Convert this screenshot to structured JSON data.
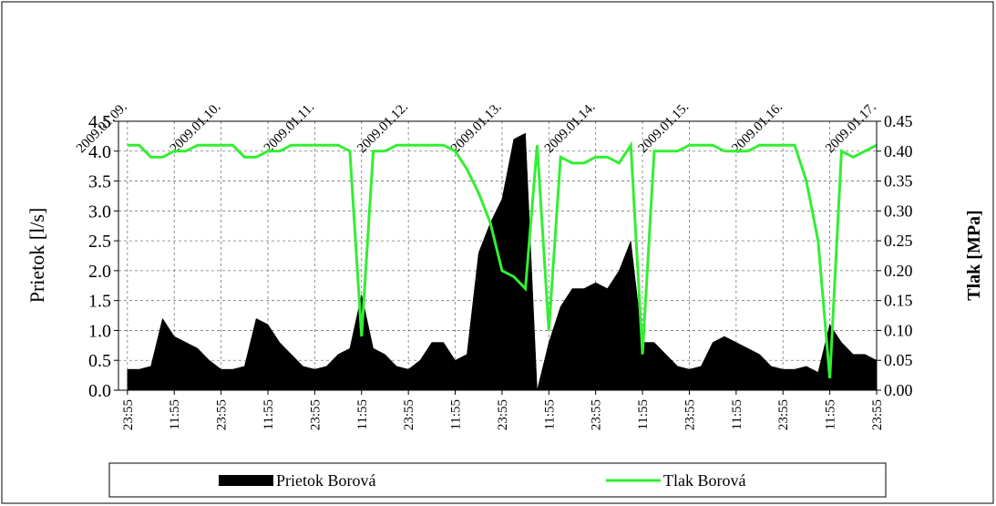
{
  "chart_data": {
    "type": "area-line",
    "y_label": "Prietok [l/s]",
    "y2_label": "Tlak [MPa]",
    "x": [
      0,
      3,
      6,
      9,
      12,
      15,
      18,
      21,
      24,
      27,
      30,
      33,
      36,
      39,
      42,
      45,
      48,
      51,
      54,
      57,
      60,
      63,
      66,
      69,
      72,
      75,
      78,
      81,
      84,
      87,
      90,
      93,
      96,
      99,
      102,
      105,
      108,
      111,
      114,
      117,
      120,
      123,
      126,
      129,
      132,
      135,
      138,
      141,
      144,
      147,
      150,
      153,
      156,
      159,
      162,
      165,
      168,
      171,
      174,
      177,
      180,
      183,
      186,
      189,
      192
    ],
    "series": [
      {
        "name": "Prietok Borová",
        "color": "#000000",
        "kind": "area",
        "values": [
          0.35,
          0.35,
          0.4,
          1.2,
          0.9,
          0.8,
          0.7,
          0.5,
          0.35,
          0.35,
          0.4,
          1.2,
          1.1,
          0.8,
          0.6,
          0.4,
          0.35,
          0.4,
          0.6,
          0.7,
          1.6,
          0.7,
          0.6,
          0.4,
          0.35,
          0.5,
          0.8,
          0.8,
          0.5,
          0.6,
          2.3,
          2.8,
          3.2,
          4.2,
          4.3,
          0,
          0.8,
          1.4,
          1.7,
          1.7,
          1.8,
          1.7,
          2.0,
          2.5,
          0.8,
          0.8,
          0.6,
          0.4,
          0.35,
          0.4,
          0.8,
          0.9,
          0.8,
          0.7,
          0.6,
          0.4,
          0.35,
          0.35,
          0.4,
          0.3,
          1.1,
          0.8,
          0.6,
          0.6,
          0.5
        ]
      },
      {
        "name": "Tlak Borová",
        "color": "#33ee33",
        "kind": "line",
        "axis": "y2",
        "values": [
          0.41,
          0.41,
          0.39,
          0.39,
          0.4,
          0.4,
          0.41,
          0.41,
          0.41,
          0.41,
          0.39,
          0.39,
          0.4,
          0.4,
          0.41,
          0.41,
          0.41,
          0.41,
          0.41,
          0.4,
          0.09,
          0.4,
          0.4,
          0.41,
          0.41,
          0.41,
          0.41,
          0.41,
          0.4,
          0.37,
          0.33,
          0.28,
          0.2,
          0.19,
          0.17,
          0.41,
          0.1,
          0.39,
          0.38,
          0.38,
          0.39,
          0.39,
          0.38,
          0.41,
          0.06,
          0.4,
          0.4,
          0.4,
          0.41,
          0.41,
          0.41,
          0.4,
          0.4,
          0.4,
          0.41,
          0.41,
          0.41,
          0.41,
          0.35,
          0.25,
          0.02,
          0.4,
          0.39,
          0.4,
          0.41
        ]
      }
    ],
    "xlim": [
      -2.3,
      192
    ],
    "xticks": [
      {
        "value": 0,
        "label": "23:55"
      },
      {
        "value": 12,
        "label": "11:55"
      },
      {
        "value": 24,
        "label": "23:55"
      },
      {
        "value": 36,
        "label": "11:55"
      },
      {
        "value": 48,
        "label": "23:55"
      },
      {
        "value": 60,
        "label": "11:55"
      },
      {
        "value": 72,
        "label": "23:55"
      },
      {
        "value": 84,
        "label": "11:55"
      },
      {
        "value": 96,
        "label": "23:55"
      },
      {
        "value": 108,
        "label": "11:55"
      },
      {
        "value": 120,
        "label": "23:55"
      },
      {
        "value": 132,
        "label": "11:55"
      },
      {
        "value": 144,
        "label": "23:55"
      },
      {
        "value": 156,
        "label": "11:55"
      },
      {
        "value": 168,
        "label": "23:55"
      },
      {
        "value": 180,
        "label": "11:55"
      },
      {
        "value": 192,
        "label": "23:55"
      }
    ],
    "x2ticks": [
      {
        "value": 0,
        "label": "2009.01.09."
      },
      {
        "value": 24,
        "label": "2009.01.10."
      },
      {
        "value": 48,
        "label": "2009.01.11."
      },
      {
        "value": 72,
        "label": "2009.01.12."
      },
      {
        "value": 96,
        "label": "2009.01.13."
      },
      {
        "value": 120,
        "label": "2009.01.14."
      },
      {
        "value": 144,
        "label": "2009.01.15."
      },
      {
        "value": 168,
        "label": "2009.01.16."
      },
      {
        "value": 192,
        "label": "2009.01.17."
      }
    ],
    "ylim": [
      0,
      4.5
    ],
    "yticks": [
      {
        "value": 0,
        "label": "0.0"
      },
      {
        "value": 0.5,
        "label": "0.5"
      },
      {
        "value": 1,
        "label": "1.0"
      },
      {
        "value": 1.5,
        "label": "1.5"
      },
      {
        "value": 2,
        "label": "2.0"
      },
      {
        "value": 2.5,
        "label": "2.5"
      },
      {
        "value": 3,
        "label": "3.0"
      },
      {
        "value": 3.5,
        "label": "3.5"
      },
      {
        "value": 4,
        "label": "4.0"
      },
      {
        "value": 4.5,
        "label": "4.5"
      }
    ],
    "y2lim": [
      0,
      0.45
    ],
    "y2ticks": [
      {
        "value": 0,
        "label": "0.00"
      },
      {
        "value": 0.05,
        "label": "0.05"
      },
      {
        "value": 0.1,
        "label": "0.10"
      },
      {
        "value": 0.15,
        "label": "0.15"
      },
      {
        "value": 0.2,
        "label": "0.20"
      },
      {
        "value": 0.25,
        "label": "0.25"
      },
      {
        "value": 0.3,
        "label": "0.30"
      },
      {
        "value": 0.35,
        "label": "0.35"
      },
      {
        "value": 0.4,
        "label": "0.40"
      },
      {
        "value": 0.45,
        "label": "0.45"
      }
    ],
    "grid": true,
    "legend": "bottom"
  }
}
